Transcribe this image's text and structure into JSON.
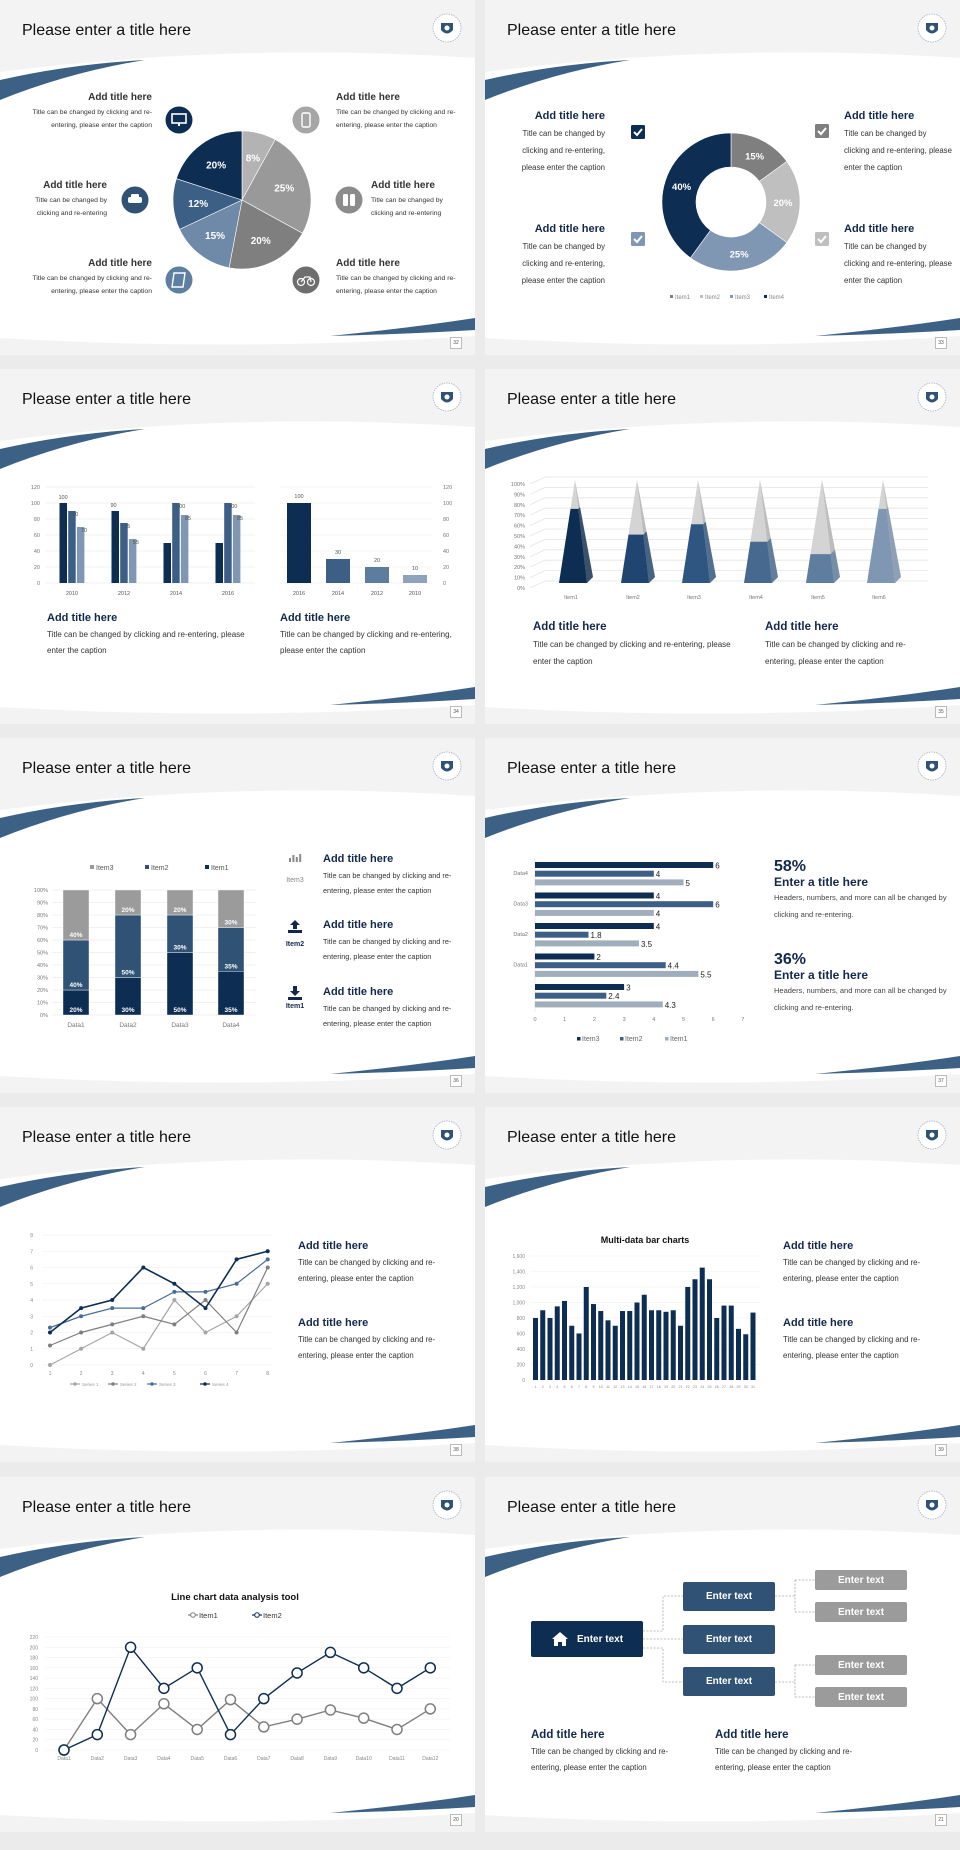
{
  "slides": [
    {
      "title": "Please enter a title here",
      "page": "32",
      "blocks": [
        {
          "heading": "Add title here",
          "caption": "Title can be changed by clicking and re-entering, please enter the caption"
        },
        {
          "heading": "Add title here",
          "caption": "Title can be changed by clicking and re-entering, please enter the caption"
        },
        {
          "heading": "Add title here",
          "caption": "Title can be changed by clicking and re-entering"
        },
        {
          "heading": "Add title here",
          "caption": "Title can be changed by clicking and re-entering"
        },
        {
          "heading": "Add title here",
          "caption": "Title can be changed by clicking and re-entering, please enter the caption"
        },
        {
          "heading": "Add title here",
          "caption": "Title can be changed by clicking and re-entering, please enter the caption"
        }
      ],
      "icons": [
        "monitor-icon",
        "phone-icon",
        "car-icon",
        "binoculars-icon",
        "book-icon",
        "bicycle-icon"
      ],
      "icon_colors": [
        "#0d2d52",
        "#a6a6a6",
        "#2f5275",
        "#8c8c8c",
        "#5d7fa0",
        "#6e6e6e"
      ],
      "chart": {
        "type": "pie",
        "values": [
          8,
          25,
          20,
          15,
          12,
          20
        ],
        "labels": [
          "8%",
          "25%",
          "20%",
          "15%",
          "12%",
          "20%"
        ],
        "colors": [
          "#b3b3b3",
          "#999999",
          "#7f7f7f",
          "#6f8aa8",
          "#3b5f85",
          "#0d2d52"
        ]
      }
    },
    {
      "title": "Please enter a title here",
      "page": "33",
      "blocks": [
        {
          "heading": "Add title here",
          "caption": "Title can be changed by clicking and re-entering, please enter the caption"
        },
        {
          "heading": "Add title here",
          "caption": "Title can be changed by clicking and re-entering, please enter the caption"
        },
        {
          "heading": "Add title here",
          "caption": "Title can be changed by clicking and re-entering, please enter the caption"
        },
        {
          "heading": "Add title here",
          "caption": "Title can be changed by clicking and re-entering, please enter the caption"
        }
      ],
      "checkbox_colors": [
        "#0d2d52",
        "#7f97b2",
        "#7f7f7f",
        "#bfbfbf"
      ],
      "chart": {
        "type": "donut",
        "categories": [
          "Item1",
          "Item2",
          "Item3",
          "Item4"
        ],
        "values": [
          15,
          20,
          25,
          40
        ],
        "labels": [
          "15%",
          "20%",
          "25%",
          "40%"
        ],
        "colors": [
          "#7f7f7f",
          "#bfbfbf",
          "#7f97b2",
          "#0d2d52"
        ],
        "legend": "bottom"
      }
    },
    {
      "title": "Please enter a title here",
      "page": "34",
      "blocks": [
        {
          "heading": "Add title here",
          "caption": "Title can be changed by clicking and re-entering, please enter the caption"
        },
        {
          "heading": "Add title here",
          "caption": "Title can be changed by clicking and re-entering, please enter the caption"
        }
      ],
      "chart": {
        "left": {
          "type": "bar",
          "categories": [
            "2010",
            "2012",
            "2014",
            "2016"
          ],
          "series": [
            {
              "values": [
                100,
                90,
                50,
                50
              ],
              "data_labels": [
                "100",
                "90",
                "",
                ""
              ],
              "color": "#0d2d52"
            },
            {
              "values": [
                90,
                75,
                100,
                100
              ],
              "data_labels": [
                "90",
                "75",
                "100",
                "100"
              ],
              "color": "#3d5f85"
            },
            {
              "values": [
                70,
                55,
                85,
                85
              ],
              "data_labels": [
                "70",
                "55",
                "85",
                "85"
              ],
              "color": "#7f97b2"
            }
          ],
          "ylim": [
            0,
            120
          ],
          "yticks": [
            "0",
            "20",
            "40",
            "60",
            "80",
            "100",
            "120"
          ],
          "grid": true
        },
        "right": {
          "type": "bar",
          "categories": [
            "2016",
            "2014",
            "2012",
            "2010"
          ],
          "values": [
            100,
            30,
            20,
            10
          ],
          "data_labels": [
            "100",
            "30",
            "20",
            "10"
          ],
          "colors": [
            "#0d2d52",
            "#3d5f85",
            "#5d7c9e",
            "#8ea3ba"
          ],
          "ylim": [
            0,
            120
          ],
          "yticks": [
            "0",
            "20",
            "40",
            "60",
            "80",
            "100",
            "120"
          ],
          "axis_side": "right"
        }
      }
    },
    {
      "title": "Please enter a title here",
      "page": "35",
      "blocks": [
        {
          "heading": "Add title here",
          "caption": "Title can be changed by clicking and re-entering, please enter the caption"
        },
        {
          "heading": "Add title here",
          "caption": "Title can be changed by clicking and re-entering, please enter the caption"
        }
      ],
      "chart": {
        "type": "pyramid-3d",
        "categories": [
          "Item1",
          "Item2",
          "Item3",
          "Item4",
          "Item5",
          "Item6"
        ],
        "values": [
          72,
          47,
          57,
          40,
          28,
          72
        ],
        "ylim": [
          0,
          100
        ],
        "yticks": [
          "0%",
          "10%",
          "20%",
          "30%",
          "40%",
          "50%",
          "60%",
          "70%",
          "80%",
          "90%",
          "100%"
        ],
        "colors": [
          "#0d2d52",
          "#1f4570",
          "#2f5680",
          "#47688f",
          "#5f7d9f",
          "#7f97b2"
        ],
        "grid": true
      }
    },
    {
      "title": "Please enter a title here",
      "page": "36",
      "blocks": [
        {
          "heading": "Add title here",
          "caption": "Title can be changed by clicking and re-entering, please enter the caption"
        },
        {
          "heading": "Add title here",
          "caption": "Title can be changed by clicking and re-entering, please enter the caption"
        },
        {
          "heading": "Add title here",
          "caption": "Title can be changed by clicking and re-entering, please enter the caption"
        }
      ],
      "icon_labels": [
        "Item3",
        "Item2",
        "Item1"
      ],
      "chart": {
        "type": "bar",
        "stacked": "percent",
        "categories": [
          "Data1",
          "Data2",
          "Data3",
          "Data4"
        ],
        "series": [
          {
            "name": "Item1",
            "values": [
              20,
              30,
              50,
              35
            ],
            "color": "#0d2d52"
          },
          {
            "name": "Item2",
            "values": [
              40,
              50,
              30,
              35
            ],
            "color": "#2f5275"
          },
          {
            "name": "Item3",
            "values": [
              40,
              20,
              20,
              30
            ],
            "color": "#9b9b9b"
          }
        ],
        "yticks": [
          "0%",
          "10%",
          "20%",
          "30%",
          "40%",
          "50%",
          "60%",
          "70%",
          "80%",
          "90%",
          "100%"
        ],
        "legend": "top"
      }
    },
    {
      "title": "Please enter a title here",
      "page": "37",
      "stats": [
        {
          "value": "58%",
          "heading": "Enter a title here",
          "caption": "Headers, numbers, and more can all be changed by clicking and re-entering."
        },
        {
          "value": "36%",
          "heading": "Enter a title here",
          "caption": "Headers, numbers, and more can all be changed by clicking and re-entering."
        }
      ],
      "chart": {
        "type": "bar",
        "orientation": "horizontal",
        "categories": [
          "Data4",
          "Data3",
          "Data2",
          "Data1",
          ""
        ],
        "series": [
          {
            "name": "Item3",
            "values": [
              6,
              4,
              4,
              2,
              3
            ],
            "color": "#0d2d52"
          },
          {
            "name": "Item2",
            "values": [
              4,
              6,
              1.8,
              4.4,
              2.4
            ],
            "color": "#3d5f85"
          },
          {
            "name": "Item1",
            "values": [
              5,
              4,
              3.5,
              5.5,
              4.3
            ],
            "color": "#a0adbb"
          }
        ],
        "xlim": [
          0,
          7
        ],
        "xticks": [
          "0",
          "1",
          "2",
          "3",
          "4",
          "5",
          "6",
          "7"
        ],
        "legend": "bottom"
      }
    },
    {
      "title": "Please enter a title here",
      "page": "38",
      "blocks": [
        {
          "heading": "Add title here",
          "caption": "Title can be changed by clicking and re-entering, please enter the caption"
        },
        {
          "heading": "Add title here",
          "caption": "Title can be changed by clicking and re-entering, please enter the caption"
        }
      ],
      "chart": {
        "type": "line",
        "x": [
          "1",
          "2",
          "3",
          "4",
          "5",
          "6",
          "7",
          "8"
        ],
        "series": [
          {
            "name": "Series 1",
            "values": [
              0,
              1,
              2,
              1,
              4,
              2,
              3,
              5
            ],
            "color": "#a6a6a6"
          },
          {
            "name": "Series 2",
            "values": [
              1.2,
              2,
              2.5,
              3,
              2.5,
              4,
              2,
              6
            ],
            "color": "#7f7f7f"
          },
          {
            "name": "Series 3",
            "values": [
              2.3,
              3,
              3.5,
              3.5,
              4.5,
              4.5,
              5,
              6.5
            ],
            "color": "#4a6d93"
          },
          {
            "name": "Series 4",
            "values": [
              2,
              3.5,
              4,
              6,
              5,
              3.5,
              6.5,
              7
            ],
            "color": "#0d2d52"
          }
        ],
        "ylim": [
          0,
          8
        ],
        "yticks": [
          "0",
          "1",
          "2",
          "3",
          "4",
          "5",
          "6",
          "7",
          "8"
        ],
        "legend": "bottom",
        "grid": true
      }
    },
    {
      "title": "Please enter a title here",
      "page": "39",
      "blocks": [
        {
          "heading": "Add title here",
          "caption": "Title can be changed by clicking and re-entering, please enter the caption"
        },
        {
          "heading": "Add title here",
          "caption": "Title can be changed by clicking and re-entering, please enter the caption"
        }
      ],
      "chart": {
        "type": "bar",
        "title": "Multi-data bar charts",
        "categories": [
          "1",
          "2",
          "3",
          "4",
          "5",
          "6",
          "7",
          "8",
          "9",
          "10",
          "11",
          "12",
          "13",
          "14",
          "15",
          "16",
          "17",
          "18",
          "19",
          "20",
          "21",
          "22",
          "23",
          "24",
          "25",
          "26",
          "27",
          "28",
          "29",
          "30",
          "31"
        ],
        "values": [
          800,
          900,
          800,
          950,
          1020,
          700,
          600,
          1200,
          980,
          890,
          770,
          700,
          890,
          890,
          1000,
          1100,
          900,
          900,
          880,
          900,
          700,
          1200,
          1300,
          1450,
          1300,
          800,
          960,
          960,
          660,
          590,
          870
        ],
        "ylim": [
          0,
          1600
        ],
        "yticks": [
          "0",
          "200",
          "400",
          "600",
          "800",
          "1,000",
          "1,200",
          "1,400",
          "1,600"
        ],
        "color": "#0d2d52",
        "grid": true
      }
    },
    {
      "title": "Please enter a title here",
      "page": "20",
      "chart": {
        "type": "line",
        "title": "Line chart data analysis tool",
        "categories": [
          "Data1",
          "Data2",
          "Data3",
          "Data4",
          "Data5",
          "Data6",
          "Data7",
          "Data8",
          "Data9",
          "Data10",
          "Data11",
          "Data12"
        ],
        "series": [
          {
            "name": "Item1",
            "values": [
              0,
              100,
              30,
              90,
              40,
              98,
              45,
              60,
              78,
              62,
              40,
              80
            ],
            "color": "#7f7f7f"
          },
          {
            "name": "Item2",
            "values": [
              0,
              30,
              200,
              120,
              160,
              30,
              100,
              150,
              190,
              160,
              120,
              160
            ],
            "color": "#0d2d52"
          }
        ],
        "ylim": [
          0,
          220
        ],
        "yticks": [
          "0",
          "20",
          "40",
          "60",
          "80",
          "100",
          "120",
          "140",
          "160",
          "180",
          "200",
          "220"
        ],
        "legend": "top",
        "grid": true
      }
    },
    {
      "title": "Please enter a title here",
      "page": "21",
      "blocks": [
        {
          "heading": "Add title here",
          "caption": "Title can be changed by clicking and re-entering, please enter the caption"
        },
        {
          "heading": "Add title here",
          "caption": "Title can be changed by clicking and re-entering, please enter the caption"
        }
      ],
      "diagram": {
        "root": "Enter text",
        "children": [
          "Enter text",
          "Enter text",
          "Enter text"
        ],
        "leaves": [
          "Enter text",
          "Enter text",
          "Enter text",
          "Enter text"
        ],
        "colors": {
          "root": "#0d2d52",
          "child": "#2f5275",
          "leaf": "#9b9b9b"
        }
      }
    }
  ]
}
